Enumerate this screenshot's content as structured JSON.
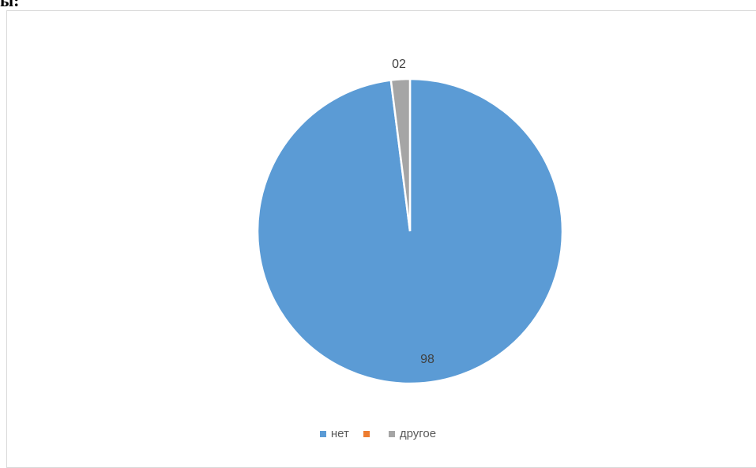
{
  "page": {
    "top_fragment": "ы:"
  },
  "chart_data": {
    "type": "pie",
    "title": "",
    "slices": [
      {
        "label": "нет",
        "value": 98,
        "data_label": "98",
        "color": "#5b9bd5"
      },
      {
        "label": "",
        "value": 0,
        "data_label": "",
        "color": "#ed7d31"
      },
      {
        "label": "другое",
        "value": 2,
        "data_label": "02",
        "color": "#a5a5a5"
      }
    ],
    "legend": {
      "placement": "bottom"
    }
  }
}
